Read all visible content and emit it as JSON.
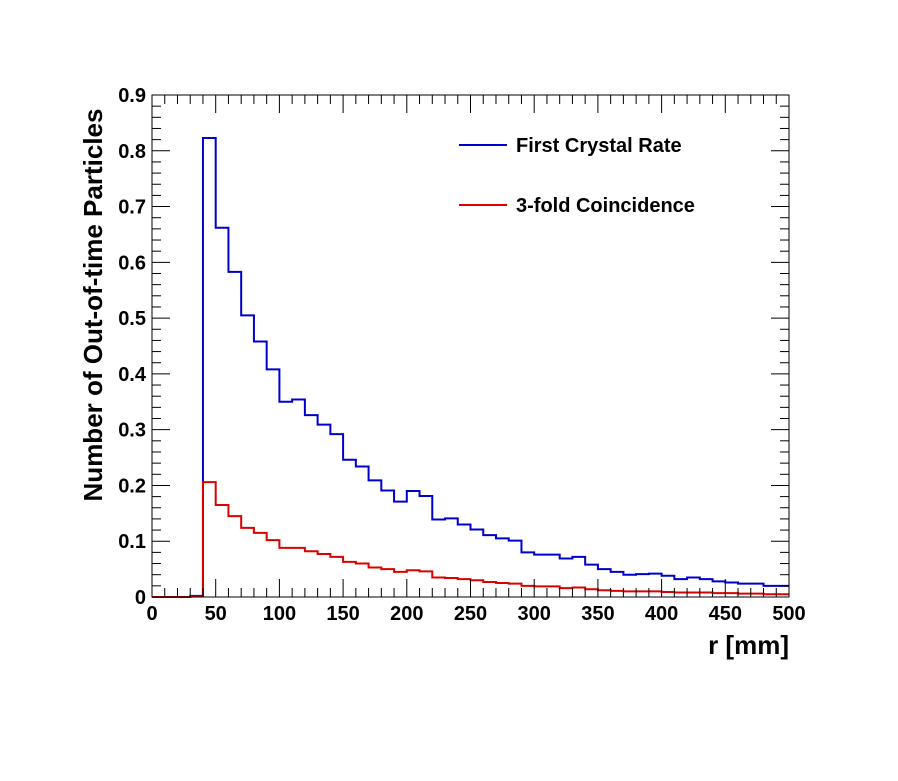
{
  "chart_data": {
    "type": "line",
    "subtype": "step-histogram",
    "title": "",
    "xlabel": "r [mm]",
    "ylabel": "Number of Out-of-time Particles",
    "xlim": [
      0,
      500
    ],
    "ylim": [
      0,
      0.9
    ],
    "xticks": [
      "0",
      "50",
      "100",
      "150",
      "200",
      "250",
      "300",
      "350",
      "400",
      "450",
      "500"
    ],
    "yticks": [
      "0",
      "0.1",
      "0.2",
      "0.3",
      "0.4",
      "0.5",
      "0.6",
      "0.7",
      "0.8",
      "0.9"
    ],
    "grid": false,
    "legend_position": "top-right",
    "bin_edges": [
      0,
      10,
      20,
      30,
      40,
      50,
      60,
      70,
      80,
      90,
      100,
      110,
      120,
      130,
      140,
      150,
      160,
      170,
      180,
      190,
      200,
      210,
      220,
      230,
      240,
      250,
      260,
      270,
      280,
      290,
      300,
      310,
      320,
      330,
      340,
      350,
      360,
      370,
      380,
      390,
      400,
      410,
      420,
      430,
      440,
      450,
      460,
      470,
      480,
      490,
      500
    ],
    "series": [
      {
        "name": "First Crystal Rate",
        "color": "#0000cc",
        "values": [
          0.0,
          0.0,
          0.0,
          0.002,
          0.823,
          0.662,
          0.583,
          0.505,
          0.458,
          0.408,
          0.35,
          0.354,
          0.326,
          0.309,
          0.292,
          0.246,
          0.234,
          0.209,
          0.191,
          0.171,
          0.19,
          0.181,
          0.139,
          0.141,
          0.13,
          0.121,
          0.111,
          0.105,
          0.101,
          0.08,
          0.076,
          0.076,
          0.069,
          0.072,
          0.058,
          0.05,
          0.045,
          0.04,
          0.041,
          0.042,
          0.038,
          0.032,
          0.035,
          0.032,
          0.028,
          0.026,
          0.024,
          0.024,
          0.02,
          0.02
        ]
      },
      {
        "name": "3-fold Coincidence",
        "color": "#dd0000",
        "values": [
          0.0,
          0.0,
          0.0,
          0.001,
          0.206,
          0.165,
          0.145,
          0.124,
          0.115,
          0.102,
          0.088,
          0.088,
          0.082,
          0.077,
          0.072,
          0.063,
          0.06,
          0.053,
          0.05,
          0.045,
          0.048,
          0.046,
          0.035,
          0.034,
          0.032,
          0.03,
          0.027,
          0.025,
          0.024,
          0.02,
          0.019,
          0.019,
          0.016,
          0.017,
          0.014,
          0.012,
          0.011,
          0.01,
          0.01,
          0.01,
          0.009,
          0.008,
          0.008,
          0.008,
          0.007,
          0.007,
          0.006,
          0.006,
          0.005,
          0.005
        ]
      }
    ]
  }
}
